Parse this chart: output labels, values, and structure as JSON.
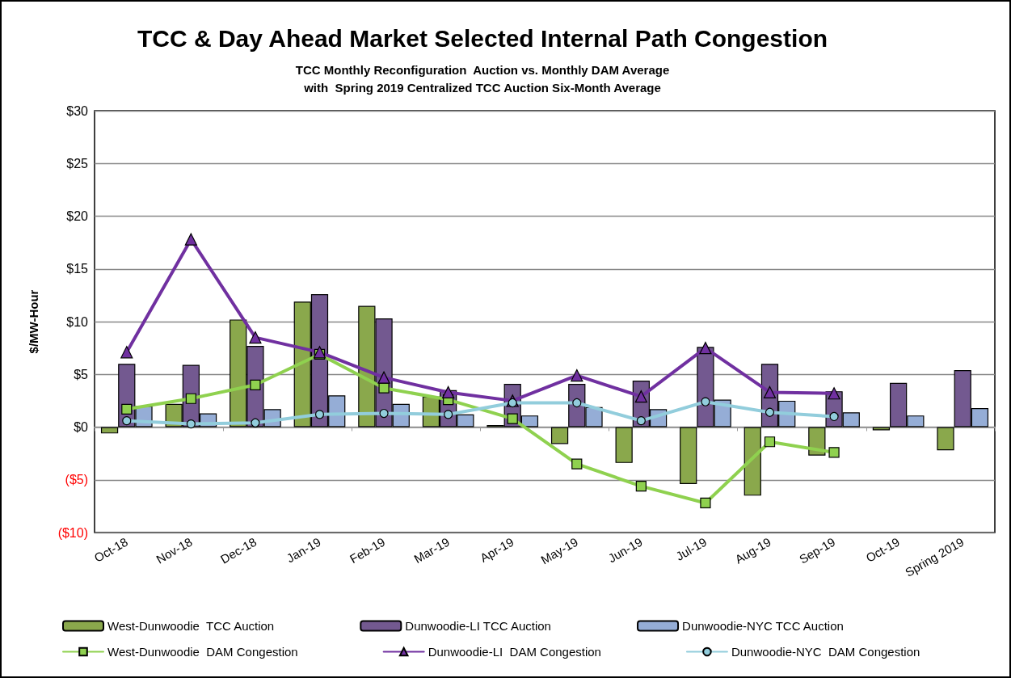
{
  "chart_data": {
    "type": "bar",
    "title": "TCC & Day Ahead Market Selected Internal Path Congestion",
    "subtitle": "TCC Monthly Reconfiguration  Auction vs. Monthly DAM Average\nwith  Spring 2019 Centralized TCC Auction Six-Month Average",
    "ylabel": "$/MW-Hour",
    "categories": [
      "Oct-18",
      "Nov-18",
      "Dec-18",
      "Jan-19",
      "Feb-19",
      "Mar-19",
      "Apr-19",
      "May-19",
      "Jun-19",
      "Jul-19",
      "Aug-19",
      "Sep-19",
      "Oct-19",
      "Spring 2019"
    ],
    "ylim": [
      -10,
      30
    ],
    "yticks": [
      {
        "value": -10,
        "label": "($10)"
      },
      {
        "value": -5,
        "label": "($5)"
      },
      {
        "value": 0,
        "label": "$0"
      },
      {
        "value": 5,
        "label": "$5"
      },
      {
        "value": 10,
        "label": "$10"
      },
      {
        "value": 15,
        "label": "$15"
      },
      {
        "value": 20,
        "label": "$20"
      },
      {
        "value": 25,
        "label": "$25"
      },
      {
        "value": 30,
        "label": "$30"
      }
    ],
    "grid": "y",
    "legend": "bottom",
    "series": [
      {
        "name": "West-Dunwoodie  TCC Auction",
        "color": "#8aa84c",
        "values": [
          -0.6,
          2.2,
          10.2,
          11.9,
          11.5,
          2.9,
          0.2,
          -1.6,
          -3.4,
          -5.4,
          -6.5,
          -2.7,
          -0.3,
          -2.2
        ]
      },
      {
        "name": "Dunwoodie-LI TCC Auction",
        "color": "#735990",
        "values": [
          6.0,
          5.9,
          7.7,
          12.6,
          10.3,
          3.5,
          4.1,
          4.1,
          4.4,
          7.6,
          6.0,
          3.4,
          4.2,
          5.4
        ]
      },
      {
        "name": "Dunwoodie-NYC TCC Auction",
        "color": "#95add6",
        "values": [
          2.0,
          1.3,
          1.7,
          3.0,
          2.2,
          1.2,
          1.1,
          1.9,
          1.7,
          2.6,
          2.5,
          1.4,
          1.1,
          1.8
        ]
      },
      {
        "name": "West-Dunwoodie  DAM Congestion",
        "type": "line",
        "marker": "square",
        "color": "#8fd14f",
        "values": [
          1.7,
          2.7,
          4.0,
          6.9,
          3.7,
          2.6,
          0.8,
          -3.5,
          -5.6,
          -7.2,
          -1.4,
          -2.4,
          null,
          null
        ]
      },
      {
        "name": "Dunwoodie-LI  DAM Congestion",
        "type": "line",
        "marker": "triangle",
        "color": "#7030a0",
        "values": [
          7.1,
          17.8,
          8.5,
          7.1,
          4.7,
          3.3,
          2.5,
          4.9,
          2.9,
          7.5,
          3.3,
          3.2,
          null,
          null
        ]
      },
      {
        "name": "Dunwoodie-NYC  DAM Congestion",
        "type": "line",
        "marker": "circle",
        "color": "#92cddc",
        "values": [
          0.6,
          0.3,
          0.4,
          1.2,
          1.3,
          1.2,
          2.3,
          2.3,
          0.6,
          2.4,
          1.4,
          1.0,
          null,
          null
        ]
      }
    ]
  }
}
